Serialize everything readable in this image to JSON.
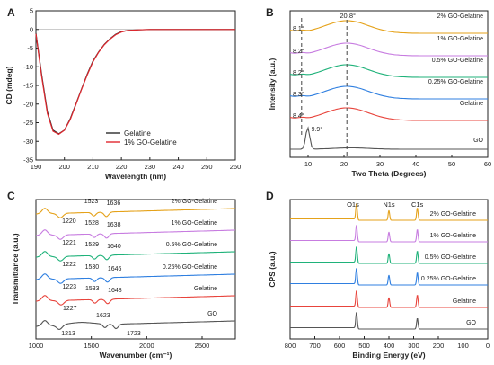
{
  "colors": {
    "gelatine": "#2b2b2b",
    "go_gelatine_1pct": "#e0272e",
    "go": "#555555",
    "gelatine_curve": "#e8443c",
    "pct025": "#2f7fe0",
    "pct05": "#1fb27a",
    "pct1": "#c77ce0",
    "pct2": "#e5a21a",
    "dashed": "#444444"
  },
  "chart_data": [
    {
      "panel": "A",
      "type": "line",
      "xlabel": "Wavelength (nm)",
      "ylabel": "CD (mdeg)",
      "xlim": [
        190,
        260
      ],
      "ylim": [
        -35,
        5
      ],
      "xticks": [
        "190",
        "200",
        "210",
        "220",
        "230",
        "240",
        "250",
        "260"
      ],
      "yticks": [
        "5",
        "0",
        "-5",
        "-10",
        "-15",
        "-20",
        "-25",
        "-30",
        "-35"
      ],
      "legend": "bottom-right",
      "series": [
        {
          "name": "Gelatine",
          "x": [
            190,
            192,
            194,
            196,
            198,
            200,
            202,
            204,
            206,
            208,
            210,
            212,
            214,
            216,
            218,
            220,
            222,
            224,
            226,
            230,
            240,
            250,
            260
          ],
          "y": [
            -1,
            -12,
            -22,
            -27,
            -28,
            -27,
            -24,
            -20,
            -16,
            -12,
            -8.5,
            -6,
            -4,
            -2.5,
            -1.3,
            -0.6,
            -0.3,
            -0.2,
            -0.1,
            0,
            0,
            0,
            0
          ]
        },
        {
          "name": "1% GO-Gelatine",
          "x": [
            190,
            192,
            194,
            196,
            198,
            200,
            202,
            204,
            206,
            208,
            210,
            212,
            214,
            216,
            218,
            220,
            222,
            224,
            226,
            230,
            240,
            250,
            260
          ],
          "y": [
            -1.2,
            -12.5,
            -22.5,
            -27.3,
            -28.1,
            -27,
            -24.2,
            -20.2,
            -16.1,
            -12.2,
            -8.7,
            -6.1,
            -4.1,
            -2.6,
            -1.4,
            -0.7,
            -0.3,
            -0.2,
            -0.1,
            0,
            0,
            0,
            0
          ]
        }
      ]
    },
    {
      "panel": "B",
      "type": "line",
      "xlabel": "Two Theta (Degrees)",
      "ylabel": "Intensity (a.u.)",
      "xlim": [
        5,
        60
      ],
      "xticks": [
        "10",
        "20",
        "30",
        "40",
        "50",
        "60"
      ],
      "series_labels": [
        "2% GO-Gelatine",
        "1% GO-Gelatine",
        "0.5% GO-Gelatine",
        "0.25% GO-Gelatine",
        "Gelatine",
        "GO"
      ],
      "peak_labels": [
        "20.8°",
        "9.9°",
        "8.1°",
        "8.2°",
        "8.2°",
        "8.3°",
        "8.4°"
      ],
      "peak_positions": {
        "broad_peak": 20.8,
        "go_peak": 9.9
      }
    },
    {
      "panel": "C",
      "type": "line",
      "xlabel": "Wavenumber (cm⁻¹)",
      "ylabel": "Transmittance (a.u.)",
      "xlim": [
        1000,
        2800
      ],
      "xticks": [
        "1000",
        "1500",
        "2000",
        "2500"
      ],
      "series": [
        {
          "name": "2% GO-Gelatine",
          "bands": [
            "1220",
            "1523",
            "1636"
          ]
        },
        {
          "name": "1% GO-Gelatine",
          "bands": [
            "1221",
            "1528",
            "1638"
          ]
        },
        {
          "name": "0.5% GO-Gelatine",
          "bands": [
            "1222",
            "1529",
            "1640"
          ]
        },
        {
          "name": "0.25% GO-Gelatine",
          "bands": [
            "1223",
            "1530",
            "1646"
          ]
        },
        {
          "name": "Gelatine",
          "bands": [
            "1227",
            "1533",
            "1648"
          ]
        },
        {
          "name": "GO",
          "bands": [
            "1213",
            "1623",
            "1723"
          ]
        }
      ]
    },
    {
      "panel": "D",
      "type": "line",
      "xlabel": "Binding Energy (eV)",
      "ylabel": "CPS (a.u.)",
      "xlim": [
        800,
        0
      ],
      "xticks": [
        "800",
        "700",
        "600",
        "500",
        "400",
        "300",
        "200",
        "100",
        "0"
      ],
      "peak_labels": [
        "O1s",
        "N1s",
        "C1s"
      ],
      "peak_positions": [
        531,
        400,
        285
      ],
      "series_labels": [
        "2% GO-Gelatine",
        "1% GO-Gelatine",
        "0.5% GO-Gelatine",
        "0.25% GO-Gelatine",
        "Gelatine",
        "GO"
      ]
    }
  ],
  "panel_letters": [
    "A",
    "B",
    "C",
    "D"
  ]
}
